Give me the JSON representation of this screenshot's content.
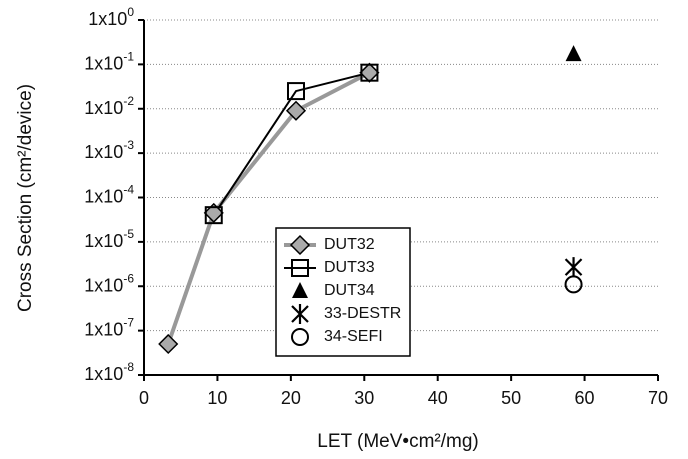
{
  "chart_data": {
    "type": "scatter",
    "xlabel": "LET (MeV•cm²/mg)",
    "ylabel": "Cross Section (cm²/device)",
    "xlim": [
      0,
      70
    ],
    "xticks": [
      0,
      10,
      20,
      30,
      40,
      50,
      60,
      70
    ],
    "ylim": [
      1e-08,
      1
    ],
    "log_y": true,
    "grid": true,
    "yticks": [
      {
        "value": 1,
        "label": "1x10",
        "label_sup": "0"
      },
      {
        "value": 0.1,
        "label": "1x10",
        "label_sup": "-1"
      },
      {
        "value": 0.01,
        "label": "1x10",
        "label_sup": "-2"
      },
      {
        "value": 0.001,
        "label": "1x10",
        "label_sup": "-3"
      },
      {
        "value": 0.0001,
        "label": "1x10",
        "label_sup": "-4"
      },
      {
        "value": 1e-05,
        "label": "1x10",
        "label_sup": "-5"
      },
      {
        "value": 1e-06,
        "label": "1x10",
        "label_sup": "-6"
      },
      {
        "value": 1e-07,
        "label": "1x10",
        "label_sup": "-7"
      },
      {
        "value": 1e-08,
        "label": "1x10",
        "label_sup": "-8"
      }
    ],
    "series": [
      {
        "name": "DUT32",
        "color": "#999999",
        "marker": "diamond",
        "line": true,
        "x": [
          3.3,
          9.5,
          20.7,
          30.7
        ],
        "values": [
          5e-08,
          4.5e-05,
          0.009,
          0.065
        ]
      },
      {
        "name": "DUT33",
        "color": "#000000",
        "marker": "square",
        "line": true,
        "x": [
          9.5,
          20.7,
          30.7
        ],
        "values": [
          4e-05,
          0.025,
          0.065
        ]
      },
      {
        "name": "DUT34",
        "color": "#000000",
        "marker": "triangle",
        "line": false,
        "x": [
          58.5
        ],
        "values": [
          0.17
        ]
      },
      {
        "name": "33-DESTR",
        "color": "#000000",
        "marker": "asterisk",
        "line": false,
        "x": [
          58.5
        ],
        "values": [
          2.7e-06
        ]
      },
      {
        "name": "34-SEFI",
        "color": "#000000",
        "marker": "circle",
        "line": false,
        "x": [
          58.5
        ],
        "values": [
          1.1e-06
        ]
      }
    ]
  }
}
